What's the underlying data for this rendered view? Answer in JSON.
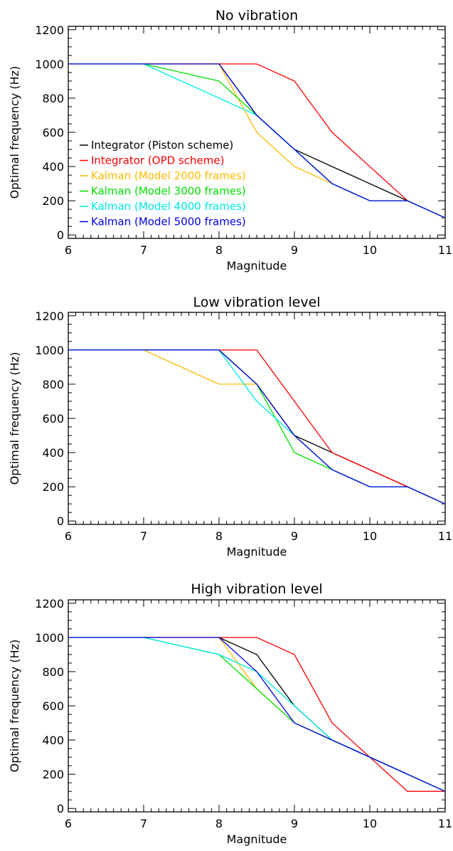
{
  "colors": {
    "Integrator (Piston scheme)": "#000000",
    "Integrator (OPD scheme)": "#ff0000",
    "Kalman (Model 2000 frames)": "#ffbb00",
    "Kalman (Model 3000 frames)": "#00e000",
    "Kalman (Model 4000 frames)": "#00e8e8",
    "Kalman (Model 5000 frames)": "#0000e0"
  },
  "chart_data": [
    {
      "type": "line",
      "title": "No vibration",
      "xlabel": "Magnitude",
      "ylabel": "Optimal frequency (Hz)",
      "xlim": [
        6,
        11
      ],
      "ylim": [
        -20,
        1220
      ],
      "x_ticks": [
        6,
        7,
        8,
        9,
        10,
        11
      ],
      "y_ticks": [
        0,
        200,
        400,
        600,
        800,
        1000,
        1200
      ],
      "legend": "left",
      "x": [
        6,
        6.5,
        7,
        7.5,
        8,
        8.5,
        9,
        9.5,
        10,
        10.5,
        11
      ],
      "series": [
        {
          "name": "Integrator (Piston scheme)",
          "values": [
            1000,
            1000,
            1000,
            1000,
            1000,
            700,
            500,
            400,
            300,
            200,
            100
          ]
        },
        {
          "name": "Integrator (OPD scheme)",
          "values": [
            1000,
            1000,
            1000,
            1000,
            1000,
            1000,
            900,
            600,
            400,
            200,
            100
          ]
        },
        {
          "name": "Kalman (Model 2000 frames)",
          "values": [
            1000,
            1000,
            1000,
            1000,
            1000,
            600,
            400,
            300,
            200,
            200,
            100
          ]
        },
        {
          "name": "Kalman (Model 3000 frames)",
          "values": [
            1000,
            1000,
            1000,
            950,
            900,
            700,
            500,
            300,
            200,
            200,
            100
          ]
        },
        {
          "name": "Kalman (Model 4000 frames)",
          "values": [
            1000,
            1000,
            1000,
            900,
            800,
            700,
            500,
            300,
            200,
            200,
            100
          ]
        },
        {
          "name": "Kalman (Model 5000 frames)",
          "values": [
            1000,
            1000,
            1000,
            1000,
            1000,
            700,
            500,
            300,
            200,
            200,
            100
          ]
        }
      ]
    },
    {
      "type": "line",
      "title": "Low vibration level",
      "xlabel": "Magnitude",
      "ylabel": "Optimal frequency (Hz)",
      "xlim": [
        6,
        11
      ],
      "ylim": [
        -20,
        1220
      ],
      "x_ticks": [
        6,
        7,
        8,
        9,
        10,
        11
      ],
      "y_ticks": [
        0,
        200,
        400,
        600,
        800,
        1000,
        1200
      ],
      "x": [
        6,
        6.5,
        7,
        7.5,
        8,
        8.5,
        9,
        9.5,
        10,
        10.5,
        11
      ],
      "series": [
        {
          "name": "Integrator (Piston scheme)",
          "values": [
            1000,
            1000,
            1000,
            1000,
            1000,
            800,
            500,
            400,
            300,
            200,
            100
          ]
        },
        {
          "name": "Integrator (OPD scheme)",
          "values": [
            1000,
            1000,
            1000,
            1000,
            1000,
            1000,
            700,
            400,
            300,
            200,
            100
          ]
        },
        {
          "name": "Kalman (Model 2000 frames)",
          "values": [
            1000,
            1000,
            1000,
            900,
            800,
            800,
            500,
            300,
            200,
            200,
            100
          ]
        },
        {
          "name": "Kalman (Model 3000 frames)",
          "values": [
            1000,
            1000,
            1000,
            1000,
            1000,
            800,
            400,
            300,
            200,
            200,
            100
          ]
        },
        {
          "name": "Kalman (Model 4000 frames)",
          "values": [
            1000,
            1000,
            1000,
            1000,
            1000,
            700,
            500,
            300,
            200,
            200,
            100
          ]
        },
        {
          "name": "Kalman (Model 5000 frames)",
          "values": [
            1000,
            1000,
            1000,
            1000,
            1000,
            800,
            500,
            300,
            200,
            200,
            100
          ]
        }
      ]
    },
    {
      "type": "line",
      "title": "High vibration level",
      "xlabel": "Magnitude",
      "ylabel": "Optimal frequency (Hz)",
      "xlim": [
        6,
        11
      ],
      "ylim": [
        -20,
        1220
      ],
      "x_ticks": [
        6,
        7,
        8,
        9,
        10,
        11
      ],
      "y_ticks": [
        0,
        200,
        400,
        600,
        800,
        1000,
        1200
      ],
      "x": [
        6,
        6.5,
        7,
        7.5,
        8,
        8.5,
        9,
        9.5,
        10,
        10.5,
        11
      ],
      "series": [
        {
          "name": "Integrator (Piston scheme)",
          "values": [
            1000,
            1000,
            1000,
            1000,
            1000,
            900,
            600,
            400,
            300,
            200,
            100
          ]
        },
        {
          "name": "Integrator (OPD scheme)",
          "values": [
            1000,
            1000,
            1000,
            1000,
            1000,
            1000,
            900,
            500,
            300,
            100,
            100
          ]
        },
        {
          "name": "Kalman (Model 2000 frames)",
          "values": [
            1000,
            1000,
            1000,
            1000,
            1000,
            700,
            500,
            400,
            300,
            200,
            100
          ]
        },
        {
          "name": "Kalman (Model 3000 frames)",
          "values": [
            1000,
            1000,
            1000,
            950,
            900,
            700,
            500,
            400,
            300,
            200,
            100
          ]
        },
        {
          "name": "Kalman (Model 4000 frames)",
          "values": [
            1000,
            1000,
            1000,
            950,
            900,
            800,
            600,
            400,
            300,
            200,
            100
          ]
        },
        {
          "name": "Kalman (Model 5000 frames)",
          "values": [
            1000,
            1000,
            1000,
            1000,
            1000,
            800,
            500,
            400,
            300,
            200,
            100
          ]
        }
      ]
    }
  ]
}
